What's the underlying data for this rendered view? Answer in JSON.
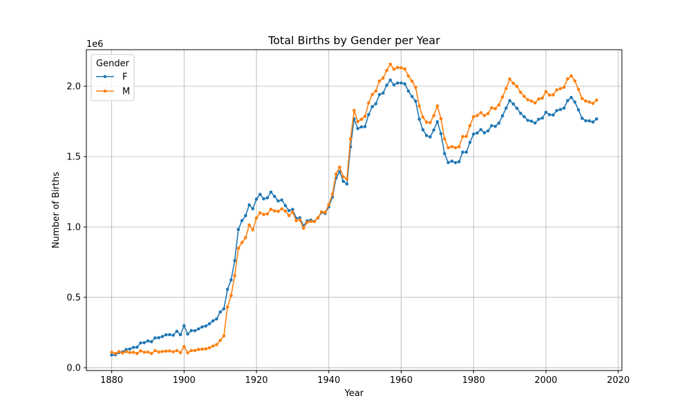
{
  "chart_data": {
    "type": "line",
    "title": "Total Births by Gender per Year",
    "xlabel": "Year",
    "ylabel": "Number of Births",
    "y_offset_label": "1e6",
    "xlim": [
      1873,
      2021
    ],
    "ylim": [
      -0.02,
      2.26
    ],
    "xticks": [
      1880,
      1900,
      1920,
      1940,
      1960,
      1980,
      2000,
      2020
    ],
    "xtick_labels": [
      "1880",
      "1900",
      "1920",
      "1940",
      "1960",
      "1980",
      "2000",
      "2020"
    ],
    "yticks": [
      0.0,
      0.5,
      1.0,
      1.5,
      2.0
    ],
    "ytick_labels": [
      "0.0",
      "0.5",
      "1.0",
      "1.5",
      "2.0"
    ],
    "grid": true,
    "legend": {
      "title": "Gender",
      "placement": "top-left"
    },
    "colors": {
      "F": "#1f77b4",
      "M": "#ff7f0e"
    },
    "x_start": 1880,
    "series": [
      {
        "name": "F",
        "color": "#1f77b4",
        "values": [
          0.09,
          0.092,
          0.108,
          0.112,
          0.129,
          0.133,
          0.144,
          0.146,
          0.176,
          0.178,
          0.19,
          0.185,
          0.212,
          0.213,
          0.222,
          0.234,
          0.235,
          0.231,
          0.259,
          0.235,
          0.299,
          0.239,
          0.264,
          0.263,
          0.276,
          0.29,
          0.296,
          0.312,
          0.333,
          0.347,
          0.396,
          0.419,
          0.557,
          0.624,
          0.761,
          0.983,
          1.045,
          1.081,
          1.157,
          1.13,
          1.198,
          1.232,
          1.2,
          1.207,
          1.248,
          1.217,
          1.185,
          1.192,
          1.152,
          1.116,
          1.125,
          1.062,
          1.066,
          1.007,
          1.044,
          1.049,
          1.04,
          1.064,
          1.103,
          1.096,
          1.144,
          1.212,
          1.348,
          1.393,
          1.325,
          1.306,
          1.57,
          1.769,
          1.699,
          1.711,
          1.713,
          1.799,
          1.855,
          1.876,
          1.941,
          1.952,
          2.007,
          2.044,
          2.01,
          2.023,
          2.023,
          2.017,
          1.966,
          1.927,
          1.894,
          1.766,
          1.691,
          1.65,
          1.64,
          1.689,
          1.748,
          1.663,
          1.521,
          1.458,
          1.468,
          1.457,
          1.464,
          1.532,
          1.532,
          1.601,
          1.66,
          1.668,
          1.692,
          1.67,
          1.683,
          1.72,
          1.715,
          1.738,
          1.79,
          1.845,
          1.898,
          1.874,
          1.843,
          1.808,
          1.784,
          1.758,
          1.752,
          1.739,
          1.766,
          1.774,
          1.815,
          1.798,
          1.796,
          1.827,
          1.835,
          1.845,
          1.898,
          1.921,
          1.888,
          1.832,
          1.772,
          1.755,
          1.754,
          1.746,
          1.768
        ]
      },
      {
        "name": "M",
        "color": "#ff7f0e",
        "values": [
          0.11,
          0.101,
          0.114,
          0.105,
          0.114,
          0.108,
          0.11,
          0.101,
          0.12,
          0.11,
          0.111,
          0.101,
          0.122,
          0.112,
          0.115,
          0.117,
          0.119,
          0.113,
          0.122,
          0.107,
          0.15,
          0.106,
          0.122,
          0.122,
          0.13,
          0.132,
          0.134,
          0.142,
          0.154,
          0.164,
          0.194,
          0.226,
          0.431,
          0.513,
          0.654,
          0.849,
          0.89,
          0.924,
          1.014,
          0.98,
          1.064,
          1.101,
          1.089,
          1.093,
          1.126,
          1.114,
          1.111,
          1.129,
          1.113,
          1.081,
          1.106,
          1.045,
          1.051,
          0.991,
          1.033,
          1.04,
          1.038,
          1.066,
          1.108,
          1.103,
          1.158,
          1.232,
          1.376,
          1.425,
          1.357,
          1.341,
          1.625,
          1.829,
          1.749,
          1.765,
          1.786,
          1.881,
          1.941,
          1.966,
          2.037,
          2.058,
          2.112,
          2.157,
          2.121,
          2.133,
          2.131,
          2.123,
          2.073,
          2.036,
          1.992,
          1.86,
          1.78,
          1.745,
          1.742,
          1.791,
          1.86,
          1.769,
          1.626,
          1.563,
          1.571,
          1.563,
          1.57,
          1.643,
          1.644,
          1.72,
          1.783,
          1.792,
          1.812,
          1.792,
          1.806,
          1.847,
          1.841,
          1.867,
          1.924,
          1.984,
          2.052,
          2.021,
          1.999,
          1.957,
          1.928,
          1.904,
          1.895,
          1.882,
          1.91,
          1.916,
          1.962,
          1.937,
          1.939,
          1.974,
          1.983,
          1.993,
          2.052,
          2.074,
          2.038,
          1.978,
          1.913,
          1.895,
          1.888,
          1.878,
          1.901
        ]
      }
    ]
  }
}
